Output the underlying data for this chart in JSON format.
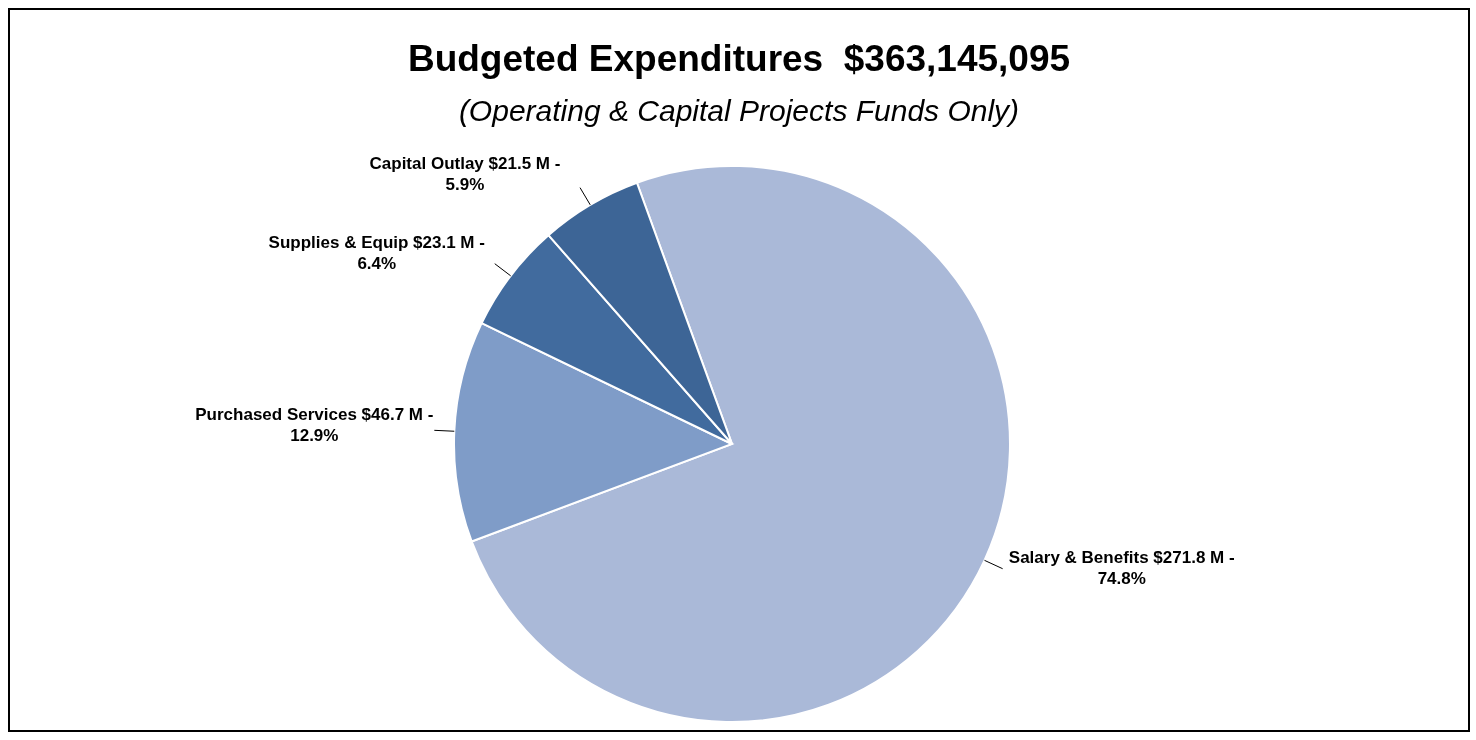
{
  "chart_data": {
    "type": "pie",
    "title": "Budgeted Expenditures  $363,145,095",
    "subtitle": "(Operating & Capital Projects Funds Only)",
    "categories": [
      "Salary & Benefits",
      "Purchased Services",
      "Supplies & Equip",
      "Capital Outlay"
    ],
    "values": [
      271.8,
      46.7,
      23.1,
      21.5
    ],
    "value_labels": [
      "$271.8 M - 74.8%",
      "$46.7 M - 12.9%",
      "$23.1 M - 6.4%",
      "$21.5 M - 5.9%"
    ],
    "colors": [
      "#aab9d8",
      "#7f9cc8",
      "#416b9e",
      "#3d6596"
    ],
    "legend": false
  }
}
